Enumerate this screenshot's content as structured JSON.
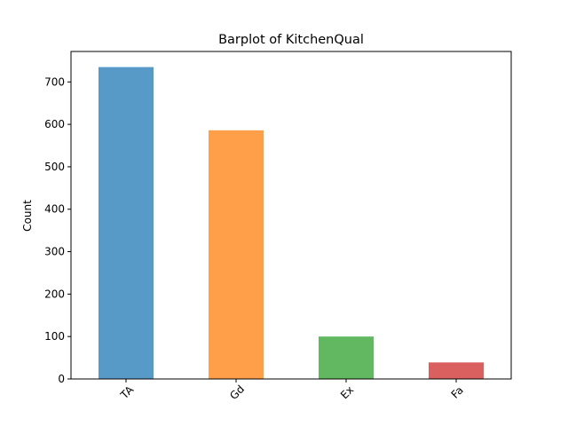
{
  "chart_data": {
    "type": "bar",
    "title": "Barplot of KitchenQual",
    "xlabel": "",
    "ylabel": "Count",
    "categories": [
      "TA",
      "Gd",
      "Ex",
      "Fa"
    ],
    "values": [
      735,
      586,
      100,
      39
    ],
    "colors": [
      "#5799c7",
      "#ff9f4a",
      "#61b861",
      "#da5f5f"
    ],
    "ylim": [
      0,
      771.75
    ],
    "yticks": [
      0,
      100,
      200,
      300,
      400,
      500,
      600,
      700
    ],
    "grid": false,
    "legend": "none"
  }
}
